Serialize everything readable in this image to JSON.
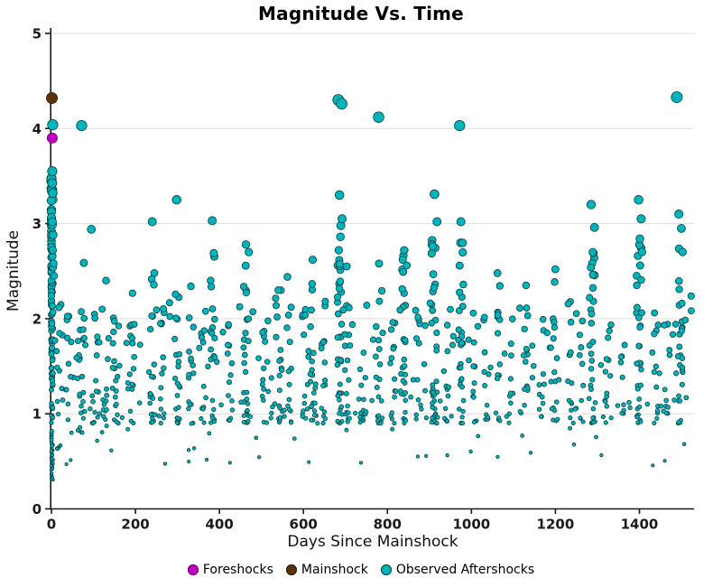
{
  "chart_data": {
    "type": "scatter",
    "title": "Magnitude Vs. Time",
    "xlabel": "Days Since Mainshock",
    "ylabel": "Magnitude",
    "xlim": [
      0,
      1530
    ],
    "ylim": [
      0,
      5
    ],
    "x_ticks": [
      0,
      200,
      400,
      600,
      800,
      1000,
      1200,
      1400
    ],
    "y_ticks": [
      0,
      1,
      2,
      3,
      4,
      5
    ],
    "grid": "horizontal",
    "legend_position": "bottom",
    "background": "#ffffff",
    "point_size_rule": "radius_px = 1.1 + 1.15 * magnitude",
    "series": [
      {
        "name": "Foreshocks",
        "color": "#C400C4",
        "edge": "#640064",
        "points": [
          [
            2,
            3.9
          ]
        ]
      },
      {
        "name": "Mainshock",
        "color": "#5B3209",
        "edge": "#2E1A05",
        "points": [
          [
            1,
            4.32
          ]
        ]
      },
      {
        "name": "Observed Aftershocks",
        "color": "#00B4BC",
        "edge": "#0B3F42",
        "seed": 20240613,
        "notable_points": [
          [
            3,
            4.04
          ],
          [
            72,
            4.03
          ],
          [
            683,
            4.3
          ],
          [
            691,
            4.26
          ],
          [
            779,
            4.12
          ],
          [
            972,
            4.03
          ],
          [
            1489,
            4.33
          ],
          [
            298,
            3.25
          ],
          [
            240,
            3.02
          ],
          [
            383,
            3.03
          ],
          [
            95,
            2.94
          ],
          [
            686,
            3.3
          ],
          [
            692,
            3.05
          ],
          [
            688,
            2.86
          ],
          [
            912,
            3.31
          ],
          [
            918,
            3.02
          ],
          [
            908,
            2.76
          ],
          [
            975,
            3.02
          ],
          [
            1285,
            3.2
          ],
          [
            1293,
            2.96
          ],
          [
            1289,
            2.7
          ],
          [
            1398,
            3.25
          ],
          [
            1404,
            3.05
          ],
          [
            1401,
            2.84
          ],
          [
            1494,
            3.1
          ],
          [
            1500,
            2.95
          ],
          [
            463,
            2.78
          ],
          [
            470,
            2.7
          ],
          [
            622,
            2.62
          ],
          [
            562,
            2.44
          ],
          [
            840,
            2.72
          ],
          [
            846,
            2.56
          ],
          [
            1062,
            2.48
          ],
          [
            1200,
            2.52
          ],
          [
            703,
            2.55
          ],
          [
            2,
            3.55
          ],
          [
            3,
            3.32
          ],
          [
            2,
            3.02
          ],
          [
            4,
            2.88
          ],
          [
            3,
            2.72
          ],
          [
            5,
            2.58
          ],
          [
            6,
            2.45
          ],
          [
            130,
            2.4
          ],
          [
            332,
            2.34
          ],
          [
            540,
            2.3
          ],
          [
            1130,
            2.35
          ],
          [
            780,
            2.58
          ]
        ],
        "clusters": [
          {
            "x": 0,
            "spread": 4,
            "count": 130,
            "mag_min": 0.3,
            "mag_max": 3.55,
            "exp": 1.4
          },
          {
            "x": 20,
            "spread": 8,
            "count": 14,
            "mag_min": 0.6,
            "mag_max": 2.3,
            "exp": 1.8
          },
          {
            "x": 45,
            "spread": 8,
            "count": 10,
            "mag_min": 0.8,
            "mag_max": 2.1,
            "exp": 1.8
          },
          {
            "x": 72,
            "spread": 10,
            "count": 22,
            "mag_min": 0.8,
            "mag_max": 2.7,
            "exp": 1.8
          },
          {
            "x": 105,
            "spread": 8,
            "count": 12,
            "mag_min": 0.9,
            "mag_max": 2.2,
            "exp": 1.8
          },
          {
            "x": 128,
            "spread": 8,
            "count": 12,
            "mag_min": 0.8,
            "mag_max": 2.2,
            "exp": 1.8
          },
          {
            "x": 152,
            "spread": 8,
            "count": 14,
            "mag_min": 0.9,
            "mag_max": 2.2,
            "exp": 1.8
          },
          {
            "x": 190,
            "spread": 8,
            "count": 16,
            "mag_min": 0.9,
            "mag_max": 2.3,
            "exp": 1.8
          },
          {
            "x": 240,
            "spread": 6,
            "count": 20,
            "mag_min": 0.9,
            "mag_max": 2.6,
            "exp": 1.8
          },
          {
            "x": 265,
            "spread": 6,
            "count": 12,
            "mag_min": 0.9,
            "mag_max": 2.2,
            "exp": 1.8
          },
          {
            "x": 300,
            "spread": 6,
            "count": 20,
            "mag_min": 0.9,
            "mag_max": 2.8,
            "exp": 1.8
          },
          {
            "x": 332,
            "spread": 6,
            "count": 12,
            "mag_min": 0.9,
            "mag_max": 2.3,
            "exp": 1.8
          },
          {
            "x": 362,
            "spread": 6,
            "count": 10,
            "mag_min": 0.9,
            "mag_max": 2.1,
            "exp": 1.8
          },
          {
            "x": 383,
            "spread": 6,
            "count": 18,
            "mag_min": 0.9,
            "mag_max": 2.7,
            "exp": 1.8
          },
          {
            "x": 425,
            "spread": 6,
            "count": 12,
            "mag_min": 0.9,
            "mag_max": 2.2,
            "exp": 1.8
          },
          {
            "x": 463,
            "spread": 7,
            "count": 26,
            "mag_min": 0.9,
            "mag_max": 2.6,
            "exp": 1.8
          },
          {
            "x": 508,
            "spread": 6,
            "count": 10,
            "mag_min": 0.9,
            "mag_max": 2.0,
            "exp": 1.8
          },
          {
            "x": 540,
            "spread": 7,
            "count": 14,
            "mag_min": 0.9,
            "mag_max": 2.3,
            "exp": 1.8
          },
          {
            "x": 565,
            "spread": 6,
            "count": 10,
            "mag_min": 0.9,
            "mag_max": 2.2,
            "exp": 1.8
          },
          {
            "x": 600,
            "spread": 6,
            "count": 10,
            "mag_min": 0.9,
            "mag_max": 2.1,
            "exp": 1.8
          },
          {
            "x": 622,
            "spread": 6,
            "count": 16,
            "mag_min": 0.9,
            "mag_max": 2.4,
            "exp": 1.8
          },
          {
            "x": 648,
            "spread": 5,
            "count": 12,
            "mag_min": 0.9,
            "mag_max": 2.4,
            "exp": 1.8
          },
          {
            "x": 686,
            "spread": 7,
            "count": 34,
            "mag_min": 0.9,
            "mag_max": 3.0,
            "exp": 1.8
          },
          {
            "x": 703,
            "spread": 5,
            "count": 12,
            "mag_min": 0.9,
            "mag_max": 2.3,
            "exp": 1.8
          },
          {
            "x": 740,
            "spread": 6,
            "count": 10,
            "mag_min": 0.9,
            "mag_max": 2.1,
            "exp": 1.8
          },
          {
            "x": 780,
            "spread": 7,
            "count": 16,
            "mag_min": 0.9,
            "mag_max": 2.5,
            "exp": 1.8
          },
          {
            "x": 812,
            "spread": 6,
            "count": 10,
            "mag_min": 0.9,
            "mag_max": 2.1,
            "exp": 1.8
          },
          {
            "x": 840,
            "spread": 5,
            "count": 24,
            "mag_min": 0.9,
            "mag_max": 2.7,
            "exp": 1.8
          },
          {
            "x": 873,
            "spread": 6,
            "count": 10,
            "mag_min": 0.9,
            "mag_max": 2.1,
            "exp": 1.8
          },
          {
            "x": 912,
            "spread": 7,
            "count": 30,
            "mag_min": 0.9,
            "mag_max": 2.9,
            "exp": 1.8
          },
          {
            "x": 940,
            "spread": 5,
            "count": 10,
            "mag_min": 0.9,
            "mag_max": 2.2,
            "exp": 1.8
          },
          {
            "x": 975,
            "spread": 7,
            "count": 26,
            "mag_min": 0.9,
            "mag_max": 2.8,
            "exp": 1.8
          },
          {
            "x": 1008,
            "spread": 5,
            "count": 10,
            "mag_min": 0.9,
            "mag_max": 2.2,
            "exp": 1.8
          },
          {
            "x": 1035,
            "spread": 5,
            "count": 8,
            "mag_min": 0.9,
            "mag_max": 2.0,
            "exp": 1.8
          },
          {
            "x": 1062,
            "spread": 6,
            "count": 14,
            "mag_min": 0.9,
            "mag_max": 2.4,
            "exp": 1.8
          },
          {
            "x": 1095,
            "spread": 6,
            "count": 8,
            "mag_min": 0.9,
            "mag_max": 2.0,
            "exp": 1.8
          },
          {
            "x": 1130,
            "spread": 6,
            "count": 12,
            "mag_min": 0.9,
            "mag_max": 2.2,
            "exp": 1.8
          },
          {
            "x": 1165,
            "spread": 6,
            "count": 8,
            "mag_min": 0.9,
            "mag_max": 2.0,
            "exp": 1.8
          },
          {
            "x": 1200,
            "spread": 6,
            "count": 14,
            "mag_min": 0.9,
            "mag_max": 2.4,
            "exp": 1.8
          },
          {
            "x": 1235,
            "spread": 5,
            "count": 10,
            "mag_min": 0.9,
            "mag_max": 2.2,
            "exp": 1.8
          },
          {
            "x": 1262,
            "spread": 5,
            "count": 8,
            "mag_min": 0.9,
            "mag_max": 2.0,
            "exp": 1.8
          },
          {
            "x": 1290,
            "spread": 6,
            "count": 26,
            "mag_min": 0.9,
            "mag_max": 2.8,
            "exp": 1.8
          },
          {
            "x": 1322,
            "spread": 5,
            "count": 10,
            "mag_min": 0.9,
            "mag_max": 2.2,
            "exp": 1.8
          },
          {
            "x": 1360,
            "spread": 5,
            "count": 8,
            "mag_min": 0.9,
            "mag_max": 2.0,
            "exp": 1.8
          },
          {
            "x": 1400,
            "spread": 7,
            "count": 34,
            "mag_min": 0.9,
            "mag_max": 2.9,
            "exp": 1.8
          },
          {
            "x": 1440,
            "spread": 5,
            "count": 10,
            "mag_min": 0.9,
            "mag_max": 2.1,
            "exp": 1.8
          },
          {
            "x": 1468,
            "spread": 5,
            "count": 8,
            "mag_min": 0.9,
            "mag_max": 2.0,
            "exp": 1.8
          },
          {
            "x": 1497,
            "spread": 6,
            "count": 26,
            "mag_min": 0.9,
            "mag_max": 2.8,
            "exp": 1.8
          }
        ],
        "background_scatter": {
          "count": 270,
          "x_min": 5,
          "x_max": 1525,
          "low_frac": 0.16,
          "low_min": 0.4,
          "low_max": 0.95,
          "main_min": 0.95,
          "main_max": 2.25,
          "exp": 1.6
        }
      }
    ]
  }
}
